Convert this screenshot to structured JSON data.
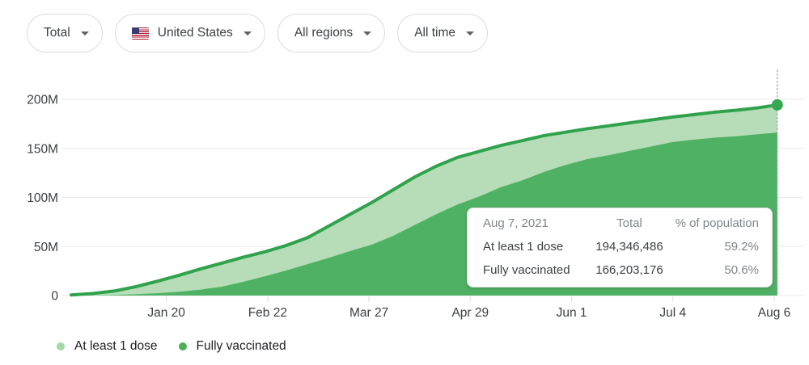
{
  "filters": [
    {
      "label": "Total"
    },
    {
      "label": "United States"
    },
    {
      "label": "All regions"
    },
    {
      "label": "All time"
    }
  ],
  "icons": {
    "dropdown_caret": "caret-down",
    "country_flag": "us-flag"
  },
  "tooltip": {
    "date": "Aug 7, 2021",
    "col_total": "Total",
    "col_pct": "% of population",
    "rows": [
      {
        "label": "At least 1 dose",
        "total": "194,346,486",
        "pct": "59.2%"
      },
      {
        "label": "Fully vaccinated",
        "total": "166,203,176",
        "pct": "50.6%"
      }
    ]
  },
  "legend": {
    "items": [
      {
        "label": "At least 1 dose",
        "color": "#a5d7a9"
      },
      {
        "label": "Fully vaccinated",
        "color": "#4cae57"
      }
    ]
  },
  "chart_data": {
    "type": "area",
    "title": "COVID-19 vaccinations over time, United States, all regions, all time",
    "x_unit": "days since Dec 20, 2020",
    "y_unit": "people (millions)",
    "ylim": [
      0,
      200
    ],
    "grid": true,
    "legend_position": "bottom-left",
    "x_ticks": [
      {
        "day": 31,
        "label": "Jan 20"
      },
      {
        "day": 64,
        "label": "Feb 22"
      },
      {
        "day": 97,
        "label": "Mar 27"
      },
      {
        "day": 130,
        "label": "Apr 29"
      },
      {
        "day": 163,
        "label": "Jun 1"
      },
      {
        "day": 196,
        "label": "Jul 4"
      },
      {
        "day": 229,
        "label": "Aug 6"
      }
    ],
    "y_ticks": [
      {
        "value": 0,
        "label": "0"
      },
      {
        "value": 50,
        "label": "50M"
      },
      {
        "value": 100,
        "label": "100M"
      },
      {
        "value": 150,
        "label": "150M"
      },
      {
        "value": 200,
        "label": "200M"
      }
    ],
    "days": [
      0,
      7,
      14,
      21,
      28,
      35,
      42,
      49,
      56,
      63,
      70,
      77,
      84,
      91,
      98,
      105,
      112,
      119,
      126,
      133,
      140,
      147,
      154,
      161,
      168,
      175,
      182,
      189,
      196,
      203,
      210,
      217,
      224,
      230
    ],
    "series": [
      {
        "name": "At least 1 dose",
        "fill": "#b6ddb8",
        "line": "#31a24c",
        "values": [
          0.6,
          2.1,
          4.6,
          9,
          14.6,
          20.5,
          27,
          33,
          39,
          44.5,
          51,
          59,
          71,
          83,
          95,
          108,
          121,
          132,
          141,
          147,
          153,
          158,
          163,
          166.5,
          170,
          173,
          176,
          179,
          182,
          184.5,
          187,
          189,
          191.5,
          194.3
        ]
      },
      {
        "name": "Fully vaccinated",
        "fill": "#4fb163",
        "values": [
          0,
          0.2,
          0.5,
          1.3,
          2.4,
          3.8,
          6,
          9,
          14,
          19.5,
          25.5,
          32,
          38.5,
          45.5,
          52,
          61,
          72,
          83,
          93,
          101,
          110.5,
          117.5,
          126,
          133,
          139,
          143,
          147.5,
          152,
          156.5,
          159,
          161,
          162.5,
          164.5,
          166.2
        ]
      }
    ],
    "end_marker": {
      "day": 230,
      "value": 194.35,
      "color": "#34a853",
      "date": "Aug 7, 2021"
    },
    "colors": {
      "gridline": "#e8eaed",
      "axis_text": "#3c4043",
      "hover_line": "#9aa0a6"
    }
  }
}
